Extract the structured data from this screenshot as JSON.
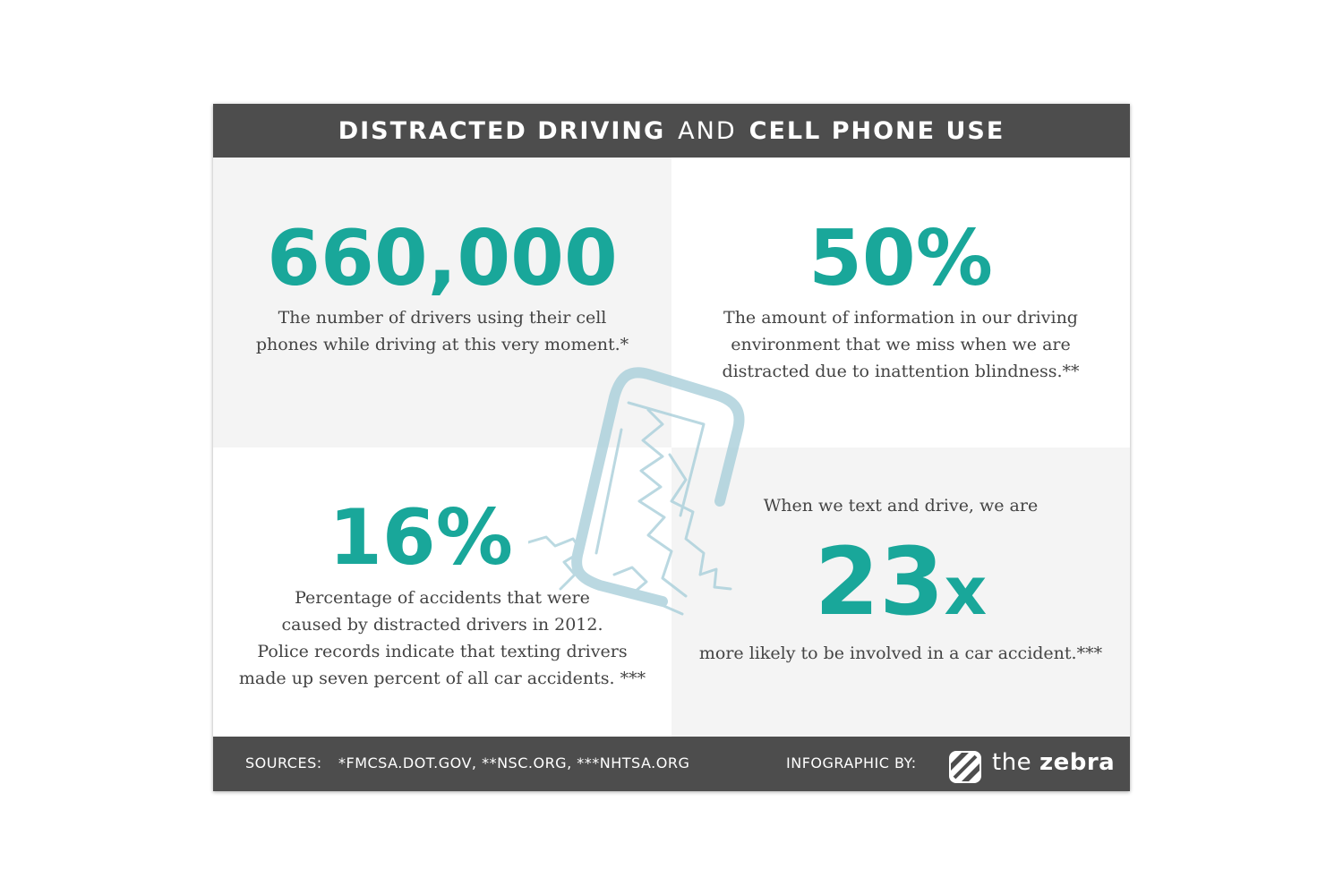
{
  "header": {
    "title_part1": "DISTRACTED DRIVING",
    "title_part2": "AND",
    "title_part3": "CELL PHONE USE"
  },
  "stats": {
    "top_left": {
      "value": "660,000",
      "lines": [
        "The number of drivers using their cell",
        "phones while driving at this very moment.*"
      ]
    },
    "top_right": {
      "value": "50%",
      "lines": [
        "The amount of information in our driving",
        "environment that we miss when we are",
        "distracted due to inattention blindness.**"
      ]
    },
    "bottom_left": {
      "value": "16%",
      "lines": [
        "Percentage of accidents that were",
        "caused by distracted drivers in 2012.",
        "Police records indicate that texting drivers",
        "made up seven percent of all car accidents. ***"
      ]
    },
    "bottom_right": {
      "intro": "When we text and drive, we are",
      "value": "23",
      "suffix": "x",
      "line": "more likely to be involved in a car accident.***"
    }
  },
  "illustration": {
    "icon": "cracked-phone-icon"
  },
  "footer": {
    "sources_label": "SOURCES:",
    "sources": "*FMCSA.DOT.GOV, **NSC.ORG, ***NHTSA.ORG",
    "by_label": "INFOGRAPHIC BY:",
    "brand_prefix": "the",
    "brand_name": "zebra",
    "logo_icon": "zebra-stripes-logo-icon"
  },
  "colors": {
    "accent": "#19a79a",
    "bar": "#4d4d4d",
    "panel_gray": "#f4f4f4",
    "text": "#444444",
    "phone": "#a9cfda"
  }
}
